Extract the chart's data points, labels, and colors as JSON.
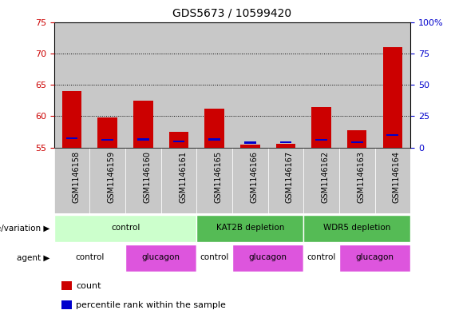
{
  "title": "GDS5673 / 10599420",
  "samples": [
    "GSM1146158",
    "GSM1146159",
    "GSM1146160",
    "GSM1146161",
    "GSM1146165",
    "GSM1146166",
    "GSM1146167",
    "GSM1146162",
    "GSM1146163",
    "GSM1146164"
  ],
  "counts": [
    64.0,
    59.8,
    62.5,
    57.5,
    61.2,
    55.5,
    55.6,
    61.5,
    57.8,
    71.0
  ],
  "percentile_ranks": [
    56.5,
    56.2,
    56.3,
    56.0,
    56.3,
    55.8,
    55.9,
    56.2,
    55.9,
    57.0
  ],
  "bar_base": 55,
  "ylim": [
    55,
    75
  ],
  "yticks_left": [
    55,
    60,
    65,
    70,
    75
  ],
  "yticks_right": [
    0,
    25,
    50,
    75,
    100
  ],
  "ylabel_left_color": "#cc0000",
  "ylabel_right_color": "#0000cc",
  "bar_color": "#cc0000",
  "percentile_color": "#0000cc",
  "grid_color": "#000000",
  "sample_bg": "#c8c8c8",
  "genotype_groups": [
    {
      "label": "control",
      "start": 0,
      "end": 4,
      "color": "#ccffcc"
    },
    {
      "label": "KAT2B depletion",
      "start": 4,
      "end": 7,
      "color": "#55bb55"
    },
    {
      "label": "WDR5 depletion",
      "start": 7,
      "end": 10,
      "color": "#55bb55"
    }
  ],
  "agent_groups": [
    {
      "label": "control",
      "start": 0,
      "end": 2,
      "color": "#ffffff"
    },
    {
      "label": "glucagon",
      "start": 2,
      "end": 4,
      "color": "#dd55dd"
    },
    {
      "label": "control",
      "start": 4,
      "end": 5,
      "color": "#ffffff"
    },
    {
      "label": "glucagon",
      "start": 5,
      "end": 7,
      "color": "#dd55dd"
    },
    {
      "label": "control",
      "start": 7,
      "end": 8,
      "color": "#ffffff"
    },
    {
      "label": "glucagon",
      "start": 8,
      "end": 10,
      "color": "#dd55dd"
    }
  ],
  "legend_count_label": "count",
  "legend_percentile_label": "percentile rank within the sample",
  "genotype_label": "genotype/variation",
  "agent_label": "agent",
  "bar_width": 0.55,
  "fig_width": 5.65,
  "fig_height": 3.93
}
